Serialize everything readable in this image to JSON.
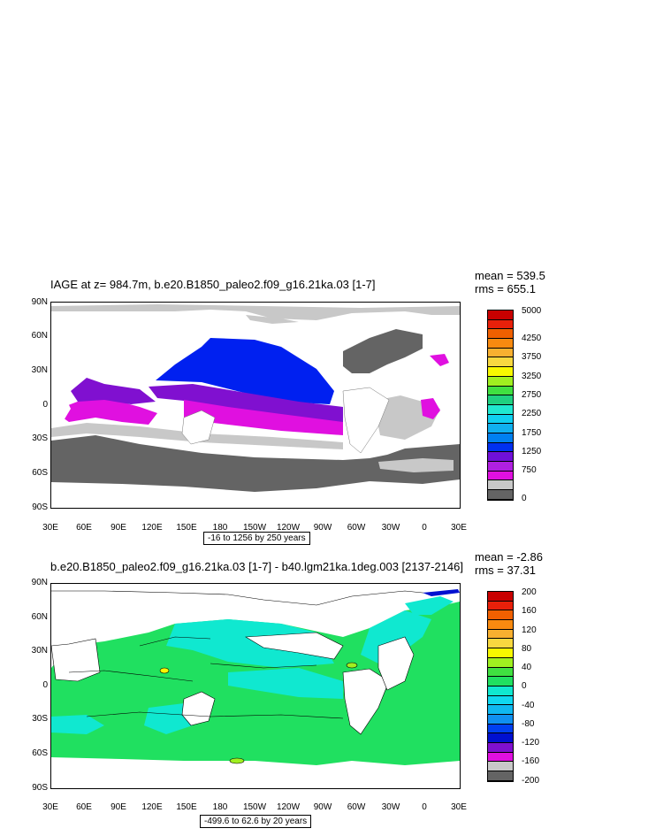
{
  "top": {
    "title": "IAGE at z= 984.7m, b.e20.B1850_paleo2.f09_g16.21ka.03 [1-7]",
    "mean": "mean = 539.5",
    "rms": "rms = 655.1",
    "range": "-16 to 1256 by 250 years",
    "lat_labels": [
      "90N",
      "60N",
      "30N",
      "0",
      "30S",
      "60S",
      "90S"
    ],
    "lon_labels": [
      "30E",
      "60E",
      "90E",
      "120E",
      "150E",
      "180",
      "150W",
      "120W",
      "90W",
      "60W",
      "30W",
      "0",
      "30E"
    ],
    "colorbar_labels": [
      "5000",
      "4250",
      "3750",
      "3250",
      "2750",
      "2250",
      "1750",
      "1250",
      "750",
      "0"
    ],
    "colorbar_colors": [
      "#c80000",
      "#e8200a",
      "#f06000",
      "#f88a10",
      "#f8b030",
      "#f8d840",
      "#f8f800",
      "#a0f020",
      "#40e040",
      "#20d080",
      "#20e8d0",
      "#10d0f0",
      "#10b0f0",
      "#0080f0",
      "#0030f0",
      "#7010d8",
      "#b020e0",
      "#e010e0",
      "#c8c8c8",
      "#646464"
    ]
  },
  "bottom": {
    "title": "b.e20.B1850_paleo2.f09_g16.21ka.03 [1-7] - b40.lgm21ka.1deg.003 [2137-2146]",
    "mean": "mean = -2.86",
    "rms": "rms = 37.31",
    "range": "-499.6 to 62.6 by 20 years",
    "lat_labels": [
      "90N",
      "60N",
      "30N",
      "0",
      "30S",
      "60S",
      "90S"
    ],
    "lon_labels": [
      "30E",
      "60E",
      "90E",
      "120E",
      "150E",
      "180",
      "150W",
      "120W",
      "90W",
      "60W",
      "30W",
      "0",
      "30E"
    ],
    "colorbar_labels": [
      "200",
      "160",
      "120",
      "80",
      "40",
      "0",
      "-40",
      "-80",
      "-120",
      "-160",
      "-200"
    ],
    "colorbar_colors": [
      "#c80000",
      "#e8200a",
      "#f06000",
      "#f88a10",
      "#f8b030",
      "#f8d840",
      "#f8f800",
      "#a0f020",
      "#40e040",
      "#20e060",
      "#10e8d0",
      "#10d8f0",
      "#10b8f0",
      "#1090f0",
      "#0040f0",
      "#0010d0",
      "#8010d0",
      "#e010e0",
      "#c8c8c8",
      "#646464"
    ]
  }
}
